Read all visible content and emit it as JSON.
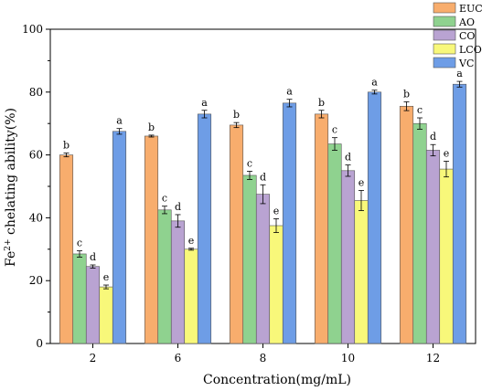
{
  "chart_data": {
    "type": "bar",
    "xlabel": "Concentration(mg/mL)",
    "ylabel_prefix": "Fe",
    "ylabel_superscript": "2+",
    "ylabel_suffix": " chelating ability(%)",
    "ylim": [
      0,
      100
    ],
    "yticks": [
      "0",
      "20",
      "40",
      "60",
      "80",
      "100"
    ],
    "categories": [
      "2",
      "6",
      "8",
      "10",
      "12"
    ],
    "legend_position": "top-right",
    "series": [
      {
        "name": "EUC",
        "color": "#F8AD6D",
        "values": [
          60,
          66,
          69.5,
          73,
          75.5
        ],
        "errors": [
          0.6,
          0.3,
          0.8,
          1.2,
          1.4
        ],
        "labels": [
          "b",
          "b",
          "b",
          "b",
          "b"
        ]
      },
      {
        "name": "AO",
        "color": "#8FD28F",
        "values": [
          28.5,
          42.5,
          53.5,
          63.5,
          70
        ],
        "errors": [
          1.0,
          1.2,
          1.3,
          2.0,
          1.8
        ],
        "labels": [
          "c",
          "c",
          "c",
          "c",
          "c"
        ]
      },
      {
        "name": "CO",
        "color": "#B9A3D2",
        "values": [
          24.5,
          39,
          47.5,
          55,
          61.5
        ],
        "errors": [
          0.5,
          2.0,
          3.0,
          1.8,
          1.8
        ],
        "labels": [
          "d",
          "d",
          "d",
          "d",
          "d"
        ]
      },
      {
        "name": "LCO",
        "color": "#F8F87A",
        "values": [
          18,
          30,
          37.5,
          45.5,
          55.5
        ],
        "errors": [
          0.6,
          0.3,
          2.2,
          3.2,
          2.5
        ],
        "labels": [
          "e",
          "e",
          "e",
          "e",
          "e"
        ]
      },
      {
        "name": "VC",
        "color": "#6E9DE6",
        "values": [
          67.5,
          73,
          76.5,
          80,
          82.5
        ],
        "errors": [
          0.9,
          1.2,
          1.2,
          0.6,
          0.9
        ],
        "labels": [
          "a",
          "a",
          "a",
          "a",
          "a"
        ]
      }
    ]
  }
}
